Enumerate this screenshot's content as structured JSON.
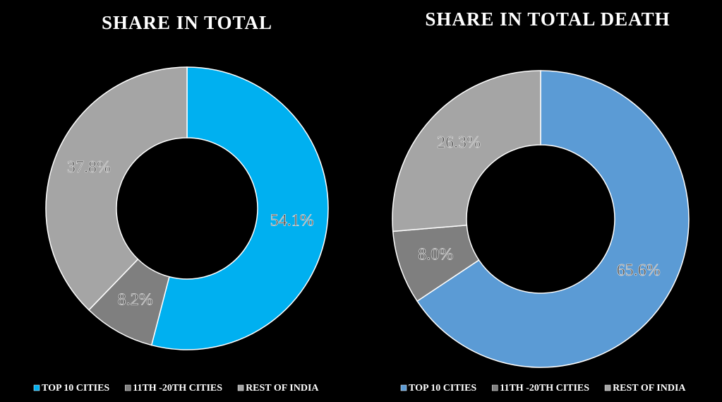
{
  "chart_data": [
    {
      "type": "donut",
      "title": "SHARE IN TOTAL",
      "categories": [
        "TOP 10 CITIES",
        "11TH -20TH CITIES",
        "REST OF INDIA"
      ],
      "values": [
        54.1,
        8.2,
        37.8
      ],
      "value_labels": [
        "54.1%",
        "8.2%",
        "37.8%"
      ],
      "colors": [
        "#00b0f0",
        "#7f7f7f",
        "#a5a5a5"
      ]
    },
    {
      "type": "donut",
      "title": "SHARE IN TOTAL DEATH",
      "categories": [
        "TOP 10 CITIES",
        "11TH -20TH CITIES",
        "REST OF INDIA"
      ],
      "values": [
        65.6,
        8.0,
        26.3
      ],
      "value_labels": [
        "65.6%",
        "8.0%",
        "26.3%"
      ],
      "colors": [
        "#5b9bd5",
        "#7f7f7f",
        "#a5a5a5"
      ]
    }
  ]
}
